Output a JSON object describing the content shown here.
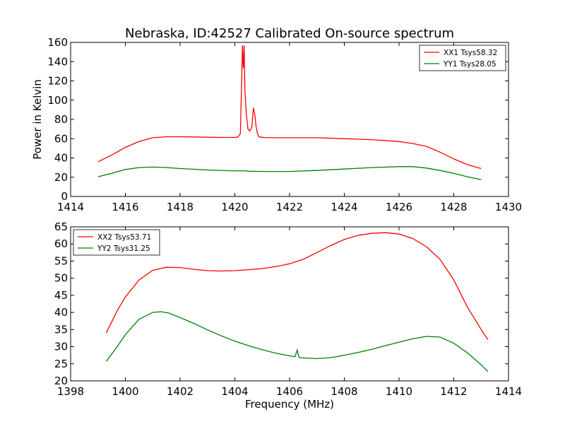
{
  "figure": {
    "title": "Nebraska, ID:42527 Calibrated On-source spectrum",
    "xlabel": "Frequency (MHz)",
    "ylabel": "Power in Kelvin"
  },
  "chart_data": [
    {
      "type": "line",
      "title": "Nebraska, ID:42527 Calibrated On-source spectrum",
      "xlabel": "",
      "ylabel": "Power in Kelvin",
      "xlim": [
        1414,
        1430
      ],
      "ylim": [
        0,
        160
      ],
      "xticks": [
        1414,
        1416,
        1418,
        1420,
        1422,
        1424,
        1426,
        1428,
        1430
      ],
      "yticks": [
        0,
        20,
        40,
        60,
        80,
        100,
        120,
        140,
        160
      ],
      "grid": false,
      "legend_position": "upper right",
      "series": [
        {
          "name": "XX1 Tsys58.32",
          "color": "#ff0000",
          "x": [
            1415.0,
            1415.5,
            1416.0,
            1416.5,
            1417.0,
            1417.5,
            1418.0,
            1418.5,
            1419.0,
            1419.5,
            1420.0,
            1420.1,
            1420.2,
            1420.25,
            1420.28,
            1420.31,
            1420.34,
            1420.37,
            1420.42,
            1420.48,
            1420.55,
            1420.62,
            1420.68,
            1420.73,
            1420.78,
            1420.83,
            1420.88,
            1420.95,
            1421.1,
            1421.5,
            1422.0,
            1423.0,
            1424.0,
            1425.0,
            1426.0,
            1426.5,
            1427.0,
            1427.5,
            1428.0,
            1428.5,
            1429.0
          ],
          "y": [
            36,
            43,
            51,
            57,
            61,
            62,
            62,
            61.8,
            61.5,
            61.3,
            61.3,
            61.5,
            65,
            120,
            157,
            133,
            157,
            110,
            85,
            70,
            68,
            72,
            92,
            85,
            72,
            65,
            62,
            61.5,
            61.2,
            61,
            61,
            61,
            60,
            59,
            57,
            55,
            52,
            46,
            39,
            33,
            29
          ]
        },
        {
          "name": "YY1 Tsys28.05",
          "color": "#008000",
          "x": [
            1415.0,
            1415.5,
            1416.0,
            1416.5,
            1417.0,
            1417.5,
            1418.0,
            1419.0,
            1420.0,
            1420.3,
            1420.5,
            1421.0,
            1422.0,
            1423.0,
            1424.0,
            1425.0,
            1426.0,
            1426.5,
            1427.0,
            1427.5,
            1428.0,
            1428.5,
            1429.0
          ],
          "y": [
            20.5,
            24,
            28,
            30,
            30.5,
            30,
            29,
            27.5,
            26.5,
            26.8,
            26.2,
            26,
            26,
            27,
            28.5,
            30,
            31,
            31,
            29.5,
            27,
            24,
            20.5,
            17.5
          ]
        }
      ]
    },
    {
      "type": "line",
      "title": "",
      "xlabel": "Frequency (MHz)",
      "ylabel": "",
      "xlim": [
        1398,
        1414
      ],
      "ylim": [
        20,
        65
      ],
      "xticks": [
        1398,
        1400,
        1402,
        1404,
        1406,
        1408,
        1410,
        1412,
        1414
      ],
      "yticks": [
        20,
        25,
        30,
        35,
        40,
        45,
        50,
        55,
        60,
        65
      ],
      "grid": false,
      "legend_position": "upper left",
      "series": [
        {
          "name": "XX2 Tsys53.71",
          "color": "#ff0000",
          "x": [
            1399.3,
            1399.7,
            1400.0,
            1400.5,
            1401.0,
            1401.5,
            1402.0,
            1402.5,
            1403.0,
            1403.5,
            1404.0,
            1404.5,
            1405.0,
            1405.5,
            1406.0,
            1406.5,
            1407.0,
            1407.5,
            1408.0,
            1408.5,
            1409.0,
            1409.5,
            1410.0,
            1410.5,
            1411.0,
            1411.5,
            1412.0,
            1412.5,
            1413.0,
            1413.25
          ],
          "y": [
            34,
            40.5,
            44.5,
            49.5,
            52.3,
            53.2,
            53.1,
            52.6,
            52.2,
            52.1,
            52.2,
            52.5,
            52.8,
            53.4,
            54.2,
            55.5,
            57.5,
            59.5,
            61.3,
            62.5,
            63.1,
            63.3,
            62.9,
            61.6,
            59.2,
            55.5,
            49.5,
            41.5,
            35,
            32
          ]
        },
        {
          "name": "YY2 Tsys31.25",
          "color": "#008000",
          "x": [
            1399.3,
            1399.7,
            1400.0,
            1400.5,
            1401.0,
            1401.3,
            1401.6,
            1402.0,
            1402.5,
            1403.0,
            1403.5,
            1404.0,
            1404.5,
            1405.0,
            1405.5,
            1406.0,
            1406.2,
            1406.28,
            1406.32,
            1406.36,
            1406.5,
            1407.0,
            1407.5,
            1408.0,
            1408.5,
            1409.0,
            1409.5,
            1410.0,
            1410.5,
            1411.0,
            1411.5,
            1412.0,
            1412.5,
            1413.0,
            1413.25
          ],
          "y": [
            25.7,
            30,
            33.5,
            38,
            40,
            40.2,
            39.8,
            38.5,
            36.8,
            34.9,
            33.2,
            31.6,
            30.3,
            29.1,
            28.1,
            27.3,
            27.1,
            29,
            27.5,
            26.8,
            26.7,
            26.5,
            26.8,
            27.5,
            28.3,
            29.2,
            30.3,
            31.3,
            32.3,
            33,
            32.8,
            31,
            28.2,
            24.7,
            22.7
          ]
        }
      ]
    }
  ]
}
